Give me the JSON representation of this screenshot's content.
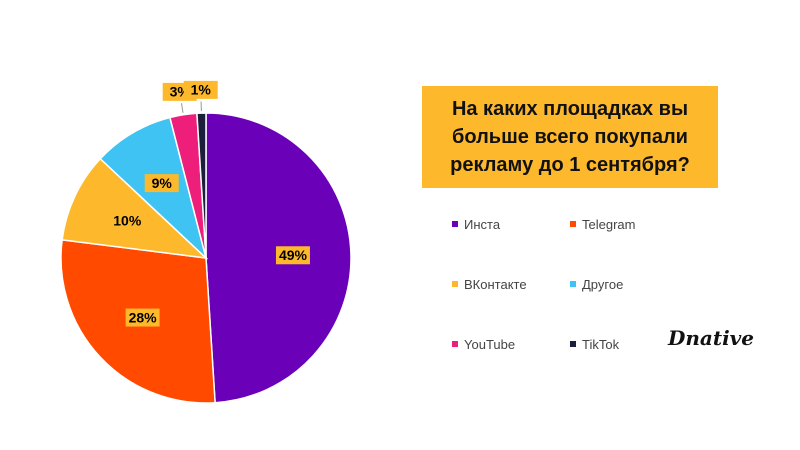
{
  "chart_data": {
    "type": "pie",
    "title": "На каких площадках вы больше всего покупали рекламу до 1 сентября?",
    "categories": [
      "Инста",
      "Telegram",
      "ВКонтакте",
      "Другое",
      "YouTube",
      "TikTok"
    ],
    "values": [
      49,
      28,
      10,
      9,
      3,
      1
    ],
    "value_labels": [
      "49%",
      "28%",
      "10%",
      "9%",
      "3%",
      "1%"
    ],
    "colors": [
      "#6a00b8",
      "#ff4a00",
      "#fdb92b",
      "#3fc3f2",
      "#ee1f7a",
      "#1b1f3b"
    ],
    "legend": "right",
    "logo": "Dnative"
  }
}
